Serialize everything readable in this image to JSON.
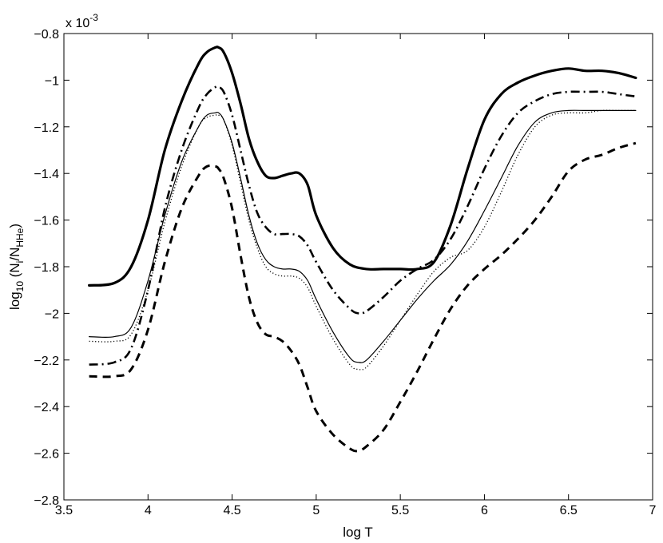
{
  "chart_data": {
    "type": "line",
    "xlabel": "log T",
    "ylabel_parts": {
      "base": "log",
      "base_sub": "10",
      "open": " (N",
      "i_sub": "i",
      "slash": "/N",
      "hhe_sub": "HHe",
      "close": ")"
    },
    "exponent_label": {
      "base": "x 10",
      "power": "-3"
    },
    "xlim": [
      3.5,
      7
    ],
    "ylim": [
      -2.8,
      -0.8
    ],
    "x_ticks": [
      3.5,
      4,
      4.5,
      5,
      5.5,
      6,
      6.5,
      7
    ],
    "x_tick_labels": [
      "3.5",
      "4",
      "4.5",
      "5",
      "5.5",
      "6",
      "6.5",
      "7"
    ],
    "y_ticks": [
      -2.8,
      -2.6,
      -2.4,
      -2.2,
      -2.0,
      -1.8,
      -1.6,
      -1.4,
      -1.2,
      -1.0,
      -0.8
    ],
    "y_tick_labels": [
      "−2.8",
      "−2.6",
      "−2.4",
      "−2.2",
      "−2",
      "−1.8",
      "−1.6",
      "−1.4",
      "−1.2",
      "−1",
      "−0.8"
    ],
    "grid": false,
    "legend": "none",
    "series": [
      {
        "style": "thick-solid",
        "x": [
          3.65,
          3.8,
          3.9,
          4.0,
          4.1,
          4.2,
          4.3,
          4.35,
          4.4,
          4.42,
          4.45,
          4.5,
          4.55,
          4.6,
          4.65,
          4.7,
          4.75,
          4.8,
          4.85,
          4.9,
          4.95,
          5.0,
          5.1,
          5.2,
          5.3,
          5.4,
          5.5,
          5.6,
          5.7,
          5.8,
          5.9,
          6.0,
          6.1,
          6.2,
          6.3,
          6.4,
          6.5,
          6.6,
          6.7,
          6.8,
          6.9
        ],
        "y": [
          -1.88,
          -1.87,
          -1.8,
          -1.6,
          -1.3,
          -1.09,
          -0.93,
          -0.88,
          -0.86,
          -0.86,
          -0.88,
          -0.97,
          -1.1,
          -1.25,
          -1.35,
          -1.41,
          -1.42,
          -1.41,
          -1.4,
          -1.4,
          -1.45,
          -1.58,
          -1.72,
          -1.79,
          -1.81,
          -1.81,
          -1.81,
          -1.81,
          -1.78,
          -1.62,
          -1.38,
          -1.17,
          -1.06,
          -1.01,
          -0.98,
          -0.96,
          -0.95,
          -0.96,
          -0.96,
          -0.97,
          -0.99
        ]
      },
      {
        "style": "thick-dashdot",
        "x": [
          3.65,
          3.8,
          3.9,
          4.0,
          4.1,
          4.2,
          4.3,
          4.35,
          4.4,
          4.42,
          4.45,
          4.5,
          4.55,
          4.6,
          4.65,
          4.7,
          4.75,
          4.8,
          4.85,
          4.9,
          4.95,
          5.0,
          5.1,
          5.2,
          5.25,
          5.3,
          5.4,
          5.5,
          5.6,
          5.7,
          5.8,
          5.9,
          6.0,
          6.1,
          6.2,
          6.3,
          6.4,
          6.5,
          6.6,
          6.7,
          6.8,
          6.9
        ],
        "y": [
          -2.22,
          -2.21,
          -2.15,
          -1.9,
          -1.55,
          -1.3,
          -1.12,
          -1.06,
          -1.03,
          -1.03,
          -1.05,
          -1.15,
          -1.3,
          -1.45,
          -1.57,
          -1.63,
          -1.66,
          -1.66,
          -1.66,
          -1.67,
          -1.71,
          -1.78,
          -1.9,
          -1.98,
          -2.0,
          -1.99,
          -1.93,
          -1.86,
          -1.81,
          -1.77,
          -1.68,
          -1.54,
          -1.38,
          -1.24,
          -1.14,
          -1.09,
          -1.06,
          -1.05,
          -1.05,
          -1.05,
          -1.06,
          -1.07
        ]
      },
      {
        "style": "thin-solid",
        "x": [
          3.65,
          3.8,
          3.9,
          4.0,
          4.1,
          4.2,
          4.3,
          4.35,
          4.4,
          4.42,
          4.45,
          4.5,
          4.55,
          4.6,
          4.65,
          4.7,
          4.75,
          4.8,
          4.85,
          4.9,
          4.95,
          5.0,
          5.1,
          5.2,
          5.25,
          5.3,
          5.4,
          5.5,
          5.6,
          5.7,
          5.8,
          5.9,
          6.0,
          6.1,
          6.2,
          6.3,
          6.4,
          6.5,
          6.6,
          6.7,
          6.8,
          6.9
        ],
        "y": [
          -2.1,
          -2.1,
          -2.06,
          -1.86,
          -1.58,
          -1.35,
          -1.2,
          -1.15,
          -1.14,
          -1.14,
          -1.17,
          -1.27,
          -1.42,
          -1.58,
          -1.7,
          -1.77,
          -1.8,
          -1.81,
          -1.81,
          -1.82,
          -1.86,
          -1.94,
          -2.08,
          -2.19,
          -2.21,
          -2.2,
          -2.12,
          -2.03,
          -1.94,
          -1.86,
          -1.79,
          -1.69,
          -1.56,
          -1.42,
          -1.28,
          -1.18,
          -1.14,
          -1.13,
          -1.13,
          -1.13,
          -1.13,
          -1.13
        ]
      },
      {
        "style": "dotted",
        "x": [
          3.65,
          3.8,
          3.9,
          4.0,
          4.1,
          4.2,
          4.3,
          4.35,
          4.4,
          4.42,
          4.45,
          4.5,
          4.55,
          4.6,
          4.65,
          4.7,
          4.75,
          4.8,
          4.85,
          4.9,
          4.95,
          5.0,
          5.1,
          5.2,
          5.25,
          5.3,
          5.4,
          5.5,
          5.6,
          5.7,
          5.8,
          5.9,
          6.0,
          6.1,
          6.2,
          6.3,
          6.4,
          6.5,
          6.6,
          6.7,
          6.8,
          6.9
        ],
        "y": [
          -2.12,
          -2.12,
          -2.09,
          -1.9,
          -1.61,
          -1.37,
          -1.2,
          -1.16,
          -1.15,
          -1.15,
          -1.17,
          -1.28,
          -1.44,
          -1.6,
          -1.72,
          -1.8,
          -1.83,
          -1.84,
          -1.84,
          -1.85,
          -1.89,
          -1.97,
          -2.11,
          -2.22,
          -2.24,
          -2.23,
          -2.14,
          -2.03,
          -1.92,
          -1.82,
          -1.76,
          -1.73,
          -1.63,
          -1.48,
          -1.32,
          -1.2,
          -1.15,
          -1.14,
          -1.14,
          -1.13,
          -1.13,
          -1.13
        ]
      },
      {
        "style": "thick-dashed",
        "x": [
          3.65,
          3.8,
          3.9,
          4.0,
          4.1,
          4.2,
          4.3,
          4.35,
          4.4,
          4.42,
          4.45,
          4.5,
          4.55,
          4.6,
          4.65,
          4.7,
          4.75,
          4.8,
          4.85,
          4.9,
          4.95,
          5.0,
          5.1,
          5.2,
          5.25,
          5.3,
          5.4,
          5.5,
          5.6,
          5.7,
          5.8,
          5.9,
          6.0,
          6.1,
          6.2,
          6.3,
          6.4,
          6.5,
          6.6,
          6.7,
          6.8,
          6.9
        ],
        "y": [
          -2.27,
          -2.27,
          -2.24,
          -2.07,
          -1.78,
          -1.55,
          -1.41,
          -1.37,
          -1.37,
          -1.38,
          -1.42,
          -1.55,
          -1.75,
          -1.93,
          -2.04,
          -2.09,
          -2.1,
          -2.12,
          -2.16,
          -2.22,
          -2.32,
          -2.42,
          -2.52,
          -2.58,
          -2.59,
          -2.57,
          -2.5,
          -2.38,
          -2.25,
          -2.11,
          -1.98,
          -1.88,
          -1.81,
          -1.75,
          -1.68,
          -1.6,
          -1.5,
          -1.39,
          -1.34,
          -1.32,
          -1.29,
          -1.27
        ]
      }
    ]
  }
}
